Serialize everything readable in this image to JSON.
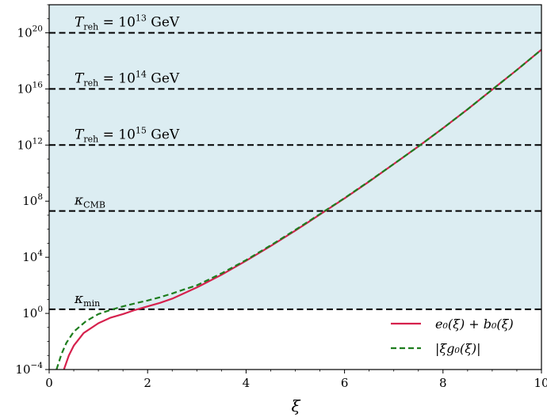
{
  "chart_data": {
    "type": "line",
    "xlabel": "ξ",
    "ylabel": "",
    "xlim": [
      0,
      10
    ],
    "ylim_log10": [
      -4,
      22
    ],
    "y_scale": "log",
    "grid": false,
    "legend_placement": "lower-right",
    "x_ticks": [
      {
        "value": 0,
        "label": "0"
      },
      {
        "value": 2,
        "label": "2"
      },
      {
        "value": 4,
        "label": "4"
      },
      {
        "value": 6,
        "label": "6"
      },
      {
        "value": 8,
        "label": "8"
      },
      {
        "value": 10,
        "label": "10"
      }
    ],
    "y_ticks": [
      {
        "exp": -4,
        "base": "10",
        "sup": "−4"
      },
      {
        "exp": 0,
        "base": "10",
        "sup": "0"
      },
      {
        "exp": 4,
        "base": "10",
        "sup": "4"
      },
      {
        "exp": 8,
        "base": "10",
        "sup": "8"
      },
      {
        "exp": 12,
        "base": "10",
        "sup": "12"
      },
      {
        "exp": 16,
        "base": "10",
        "sup": "16"
      },
      {
        "exp": 20,
        "base": "10",
        "sup": "20"
      }
    ],
    "shaded_region": {
      "y_from_log10": 0.29,
      "color": "#dcedf2"
    },
    "reference_lines": [
      {
        "y_log10": 20.0,
        "label_main": "T",
        "label_sub": "reh",
        "label_rest": " = 10",
        "label_sup": "13",
        "label_unit": " GeV"
      },
      {
        "y_log10": 16.0,
        "label_main": "T",
        "label_sub": "reh",
        "label_rest": " = 10",
        "label_sup": "14",
        "label_unit": " GeV"
      },
      {
        "y_log10": 12.0,
        "label_main": "T",
        "label_sub": "reh",
        "label_rest": " = 10",
        "label_sup": "15",
        "label_unit": " GeV"
      },
      {
        "y_log10": 7.3,
        "label_main": "κ",
        "label_sub": "CMB",
        "label_rest": "",
        "label_sup": "",
        "label_unit": ""
      },
      {
        "y_log10": 0.29,
        "label_main": "κ",
        "label_sub": "min",
        "label_rest": "",
        "label_sup": "",
        "label_unit": ""
      }
    ],
    "series": [
      {
        "name": "e₀(ξ) + b₀(ξ)",
        "color": "#d6214d",
        "style": "solid",
        "x": [
          0.3,
          0.4,
          0.5,
          0.7,
          1.0,
          1.25,
          1.5,
          1.75,
          2.0,
          2.25,
          2.5,
          2.75,
          3.0,
          3.5,
          4.0,
          4.5,
          5.0,
          5.5,
          6.0,
          6.5,
          7.0,
          7.5,
          8.0,
          8.5,
          9.0,
          9.5,
          10.0
        ],
        "y_log10": [
          -4.0,
          -3.0,
          -2.3,
          -1.4,
          -0.7,
          -0.3,
          -0.05,
          0.25,
          0.5,
          0.75,
          1.05,
          1.45,
          1.85,
          2.75,
          3.75,
          4.8,
          5.9,
          7.05,
          8.2,
          9.4,
          10.65,
          11.9,
          13.2,
          14.55,
          15.95,
          17.35,
          18.8
        ]
      },
      {
        "name": "|ξg₀(ξ)|",
        "color": "#1e7d1e",
        "style": "dashed",
        "x": [
          0.15,
          0.25,
          0.35,
          0.5,
          0.75,
          1.0,
          1.25,
          1.5,
          1.75,
          2.0,
          2.25,
          2.5,
          2.75,
          3.0,
          3.5,
          4.0,
          4.5,
          5.0,
          5.5,
          6.0,
          6.5,
          7.0,
          7.5,
          8.0,
          8.5,
          9.0,
          9.5,
          10.0
        ],
        "y_log10": [
          -4.0,
          -2.9,
          -2.1,
          -1.3,
          -0.55,
          -0.05,
          0.25,
          0.5,
          0.72,
          0.92,
          1.15,
          1.42,
          1.72,
          2.0,
          2.85,
          3.8,
          4.85,
          5.95,
          7.08,
          8.22,
          9.42,
          10.65,
          11.9,
          13.2,
          14.55,
          15.95,
          17.35,
          18.8
        ]
      }
    ]
  }
}
